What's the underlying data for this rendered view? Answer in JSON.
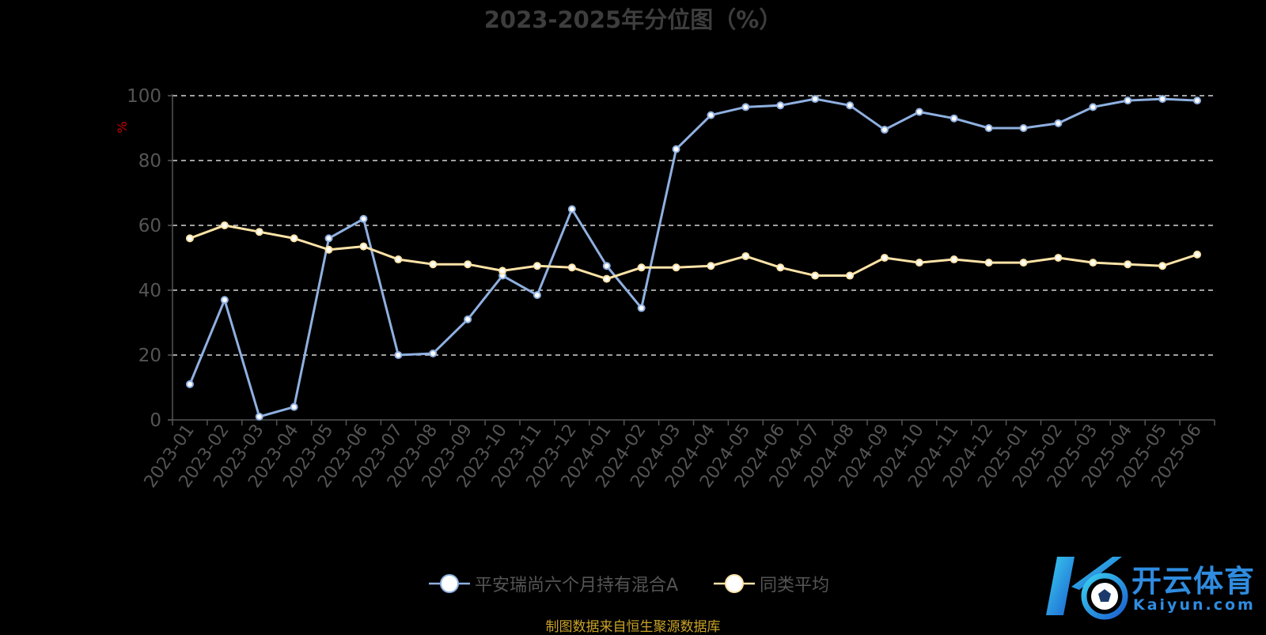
{
  "chart_data": {
    "type": "line",
    "title": "2023-2025年分位图（%）",
    "ylabel": "%",
    "ylim": [
      0,
      100
    ],
    "yticks": [
      0,
      20,
      40,
      60,
      80,
      100
    ],
    "grid": true,
    "legend_position": "bottom",
    "categories": [
      "2023-01",
      "2023-02",
      "2023-03",
      "2023-04",
      "2023-05",
      "2023-06",
      "2023-07",
      "2023-08",
      "2023-09",
      "2023-10",
      "2023-11",
      "2023-12",
      "2024-01",
      "2024-02",
      "2024-03",
      "2024-04",
      "2024-05",
      "2024-06",
      "2024-07",
      "2024-08",
      "2024-09",
      "2024-10",
      "2024-11",
      "2024-12",
      "2025-01",
      "2025-02",
      "2025-03",
      "2025-04",
      "2025-05",
      "2025-06"
    ],
    "series": [
      {
        "name": "平安瑞尚六个月持有混合A",
        "color": "#8fb0e0",
        "values": [
          11,
          37,
          1,
          4,
          56,
          62,
          20,
          20.5,
          31,
          44.5,
          38.5,
          65,
          47.5,
          34.5,
          83.5,
          94,
          96.5,
          97,
          99,
          97,
          89.5,
          95,
          93,
          90,
          90,
          91.5,
          96.5,
          98.5,
          99,
          98.5
        ]
      },
      {
        "name": "同类平均",
        "color": "#fde3a7",
        "values": [
          56,
          60,
          58,
          56,
          52.5,
          53.5,
          49.5,
          48,
          48,
          46,
          47.5,
          47,
          43.5,
          47,
          47,
          47.5,
          50.5,
          47,
          44.5,
          44.5,
          50,
          48.5,
          49.5,
          48.5,
          48.5,
          50,
          48.5,
          48,
          47.5,
          51
        ]
      }
    ]
  },
  "source": "制图数据来自恒生聚源数据库",
  "watermark": {
    "brand_cn": "开云体育",
    "brand_en": "Kaiyun.com"
  },
  "colors": {
    "background": "#000000",
    "axis": "#555555",
    "grid": "#ffffff",
    "ylabel": "#cc0000",
    "source": "#c9a227",
    "brand": "#2f8ce0"
  }
}
